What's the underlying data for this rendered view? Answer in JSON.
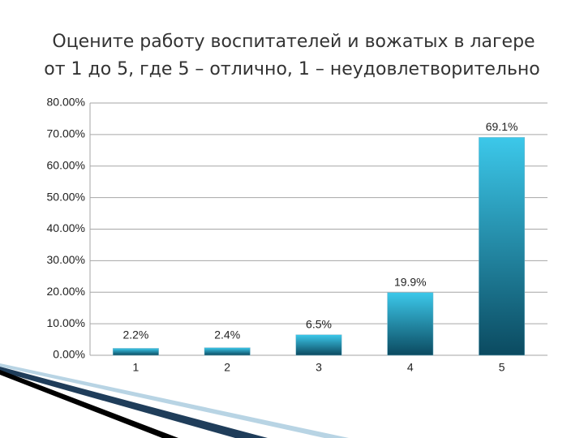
{
  "chart_data": {
    "type": "bar",
    "title": [
      "Оцените работу воспитателей и вожатых в лагере",
      "от 1 до 5, где 5 – отлично, 1 – неудовлетворительно"
    ],
    "categories": [
      "1",
      "2",
      "3",
      "4",
      "5"
    ],
    "values": [
      2.2,
      2.4,
      6.5,
      19.9,
      69.1
    ],
    "value_labels": [
      "2.2%",
      "2.4%",
      "6.5%",
      "19.9%",
      "69.1%"
    ],
    "color": "#3cc8ea",
    "ylim": [
      0,
      80
    ],
    "yticks": [
      {
        "value": 0,
        "label": "0.00%"
      },
      {
        "value": 10,
        "label": "10.00%"
      },
      {
        "value": 20,
        "label": "20.00%"
      },
      {
        "value": 30,
        "label": "30.00%"
      },
      {
        "value": 40,
        "label": "40.00%"
      },
      {
        "value": 50,
        "label": "50.00%"
      },
      {
        "value": 60,
        "label": "60.00%"
      },
      {
        "value": 70,
        "label": "70.00%"
      },
      {
        "value": 80,
        "label": "80.00%"
      }
    ],
    "grid": true
  }
}
